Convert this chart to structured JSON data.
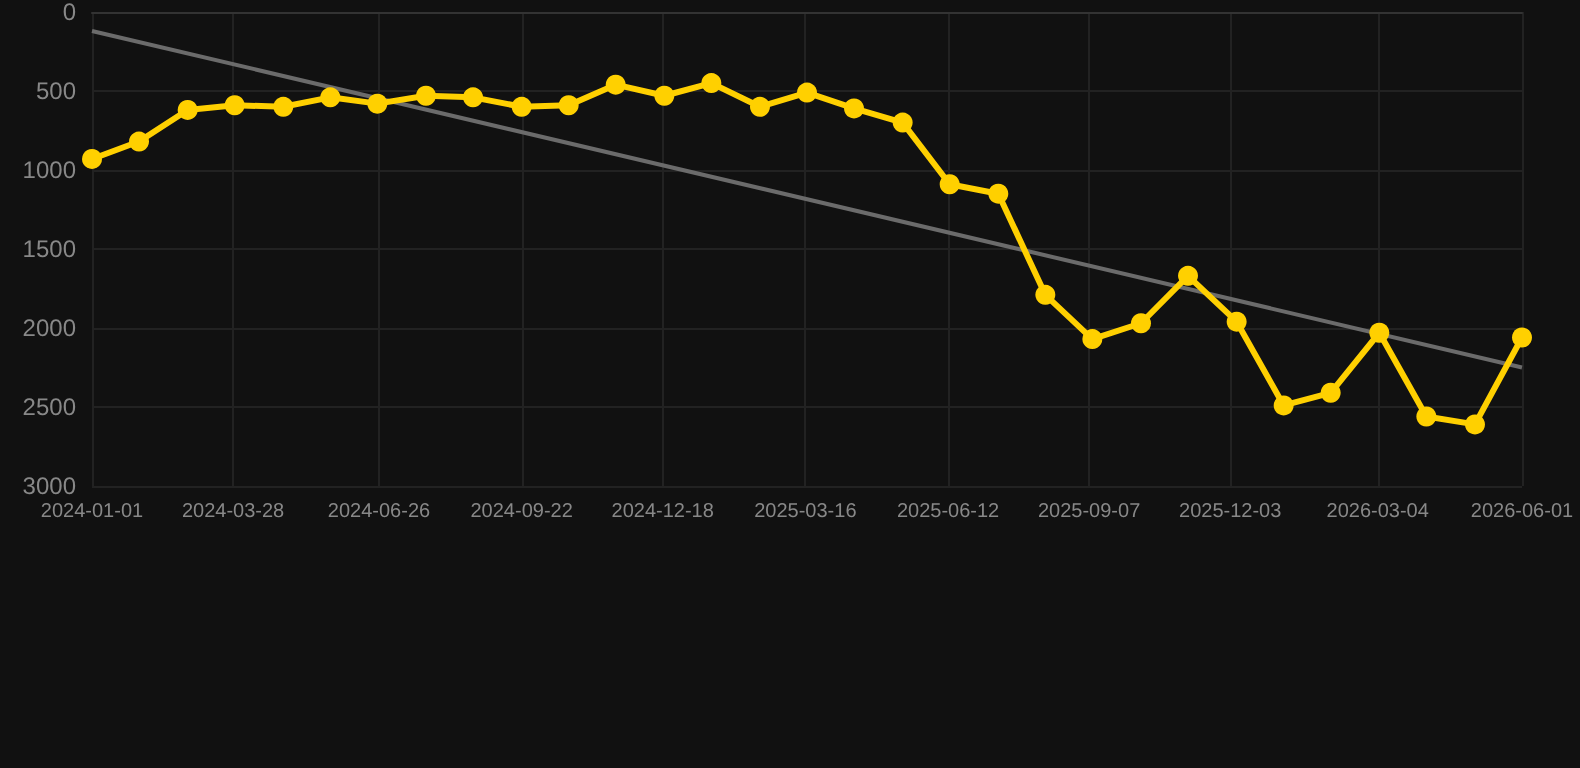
{
  "chart_data": {
    "type": "line",
    "x": [
      "2024-01-01",
      "2024-01-30",
      "2024-02-29",
      "2024-03-29",
      "2024-04-28",
      "2024-05-27",
      "2024-06-25",
      "2024-07-25",
      "2024-08-23",
      "2024-09-22",
      "2024-10-21",
      "2024-11-19",
      "2024-12-19",
      "2025-01-17",
      "2025-02-16",
      "2025-03-17",
      "2025-04-15",
      "2025-05-15",
      "2025-06-13",
      "2025-07-13",
      "2025-08-11",
      "2025-09-09",
      "2025-10-09",
      "2025-11-07",
      "2025-12-07",
      "2026-01-05",
      "2026-02-03",
      "2026-03-05",
      "2026-04-03",
      "2026-05-03",
      "2026-06-01"
    ],
    "series": [
      {
        "color": "#ffd000",
        "marker": "circle",
        "values": [
          930,
          820,
          620,
          590,
          600,
          540,
          580,
          530,
          540,
          600,
          590,
          460,
          530,
          450,
          600,
          510,
          610,
          700,
          1090,
          1150,
          1790,
          2070,
          1970,
          1670,
          1960,
          2490,
          2410,
          2030,
          2560,
          2610,
          2060
        ]
      },
      {
        "type": "line",
        "color": "#6b6b6b",
        "marker": "none",
        "x": [
          "2024-01-01",
          "2026-06-01"
        ],
        "values": [
          120,
          2250
        ]
      }
    ],
    "xlim": [
      "2024-01-01",
      "2026-06-01"
    ],
    "xticks": [
      "2024-01-01",
      "2024-03-28",
      "2024-06-26",
      "2024-09-22",
      "2024-12-18",
      "2025-03-16",
      "2025-06-12",
      "2025-09-07",
      "2025-12-03",
      "2026-03-04",
      "2026-06-01"
    ],
    "ylim": [
      3000,
      0
    ],
    "yticks": [
      0,
      500,
      1000,
      1500,
      2000,
      2500,
      3000
    ],
    "grid": true
  }
}
